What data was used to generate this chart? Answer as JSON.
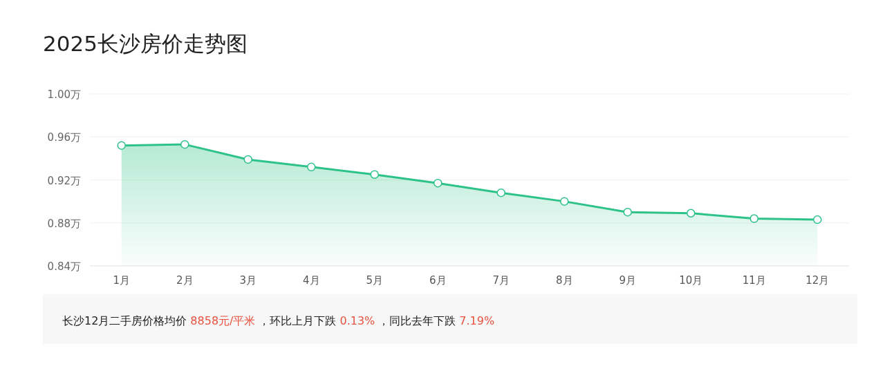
{
  "chart_data": {
    "type": "area",
    "title": "2025长沙房价走势图",
    "categories": [
      "1月",
      "2月",
      "3月",
      "4月",
      "5月",
      "6月",
      "7月",
      "8月",
      "9月",
      "10月",
      "11月",
      "12月"
    ],
    "values": [
      0.952,
      0.953,
      0.939,
      0.932,
      0.925,
      0.917,
      0.908,
      0.9,
      0.89,
      0.889,
      0.884,
      0.883
    ],
    "color": "#2ec28b",
    "marker": "circle",
    "grid": "y",
    "ylim": [
      0.84,
      1.0
    ],
    "yticks": [
      {
        "value": 0.84,
        "label": "0.84万"
      },
      {
        "value": 0.88,
        "label": "0.88万"
      },
      {
        "value": 0.92,
        "label": "0.92万"
      },
      {
        "value": 0.96,
        "label": "0.96万"
      },
      {
        "value": 1.0,
        "label": "1.00万"
      }
    ],
    "annotations": [
      "长沙12月二手房价格均价",
      "8858元/平米",
      "，环比上月下跌",
      "0.13%",
      "，同比去年下跌",
      "7.19%"
    ]
  }
}
